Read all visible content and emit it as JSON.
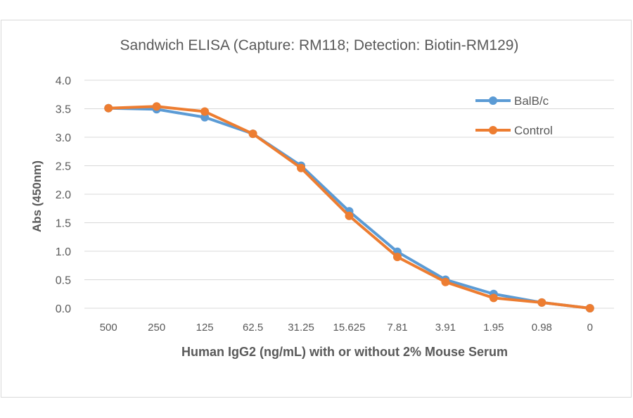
{
  "chart_data": {
    "type": "line",
    "title": "Sandwich ELISA (Capture:  RM118; Detection: Biotin-RM129)",
    "xlabel": "Human IgG2 (ng/mL) with or without 2% Mouse Serum",
    "ylabel": "Abs (450nm)",
    "categories": [
      "500",
      "250",
      "125",
      "62.5",
      "31.25",
      "15.625",
      "7.81",
      "3.91",
      "1.95",
      "0.98",
      "0"
    ],
    "ylim": [
      0,
      4.0
    ],
    "yticks": [
      "0.0",
      "0.5",
      "1.0",
      "1.5",
      "2.0",
      "2.5",
      "3.0",
      "3.5",
      "4.0"
    ],
    "grid": true,
    "legend_position": "top-right",
    "series": [
      {
        "name": "BalB/c",
        "color": "#5b9bd5",
        "values": [
          3.51,
          3.49,
          3.35,
          3.06,
          2.5,
          1.7,
          0.99,
          0.5,
          0.25,
          0.1,
          0.0
        ]
      },
      {
        "name": "Control",
        "color": "#ed7d31",
        "values": [
          3.51,
          3.54,
          3.45,
          3.06,
          2.46,
          1.62,
          0.9,
          0.46,
          0.18,
          0.1,
          0.0
        ]
      }
    ]
  }
}
